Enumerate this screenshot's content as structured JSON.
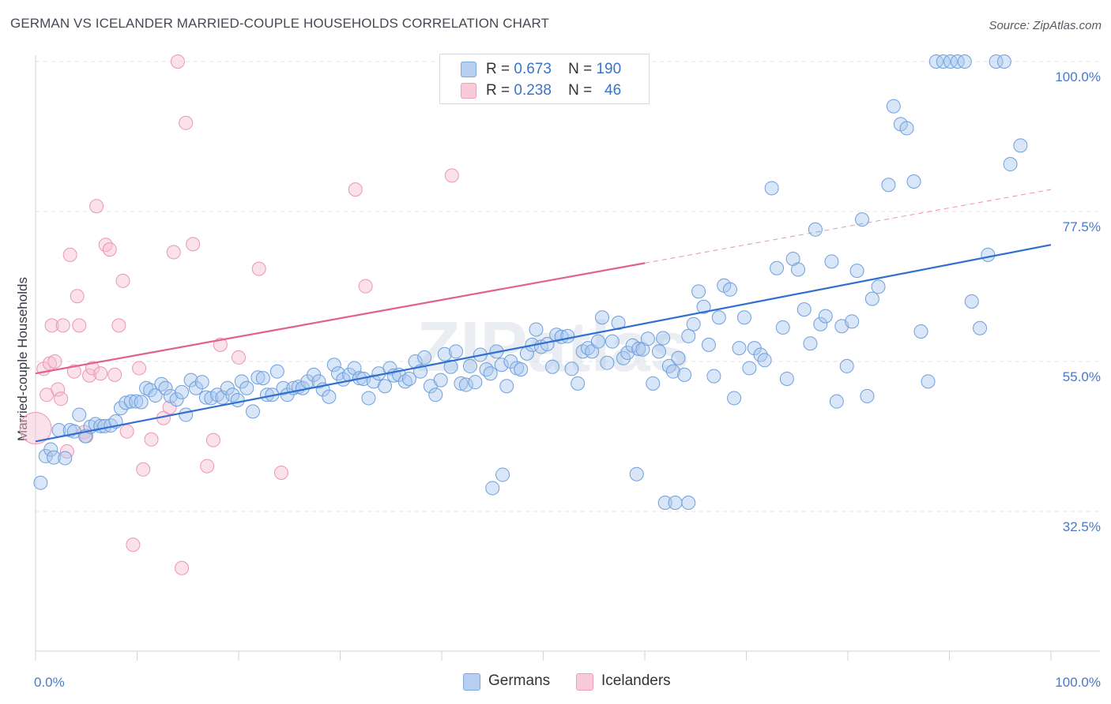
{
  "title": "GERMAN VS ICELANDER MARRIED-COUPLE HOUSEHOLDS CORRELATION CHART",
  "source": "Source: ZipAtlas.com",
  "watermark": "ZIPatlas",
  "legend": {
    "germans": {
      "r_label": "R =",
      "r_value": "0.673",
      "n_label": "N =",
      "n_value": "190"
    },
    "icelanders": {
      "r_label": "R =",
      "r_value": "0.238",
      "n_label": "N =",
      "n_value": "46"
    }
  },
  "colors": {
    "germans_fill": "#a9c8f0",
    "germans_stroke": "#6f9fdc",
    "germans_line": "#2f6fce",
    "icelanders_fill": "#f7bfd0",
    "icelanders_stroke": "#eb96b2",
    "icelanders_line": "#e0628c",
    "tick_text": "#4a78c8"
  },
  "chart_data": {
    "type": "scatter",
    "title": "GERMAN VS ICELANDER MARRIED-COUPLE HOUSEHOLDS CORRELATION CHART",
    "xlabel": "",
    "ylabel": "Married-couple Households",
    "x_tick_labels": [
      "0.0%",
      "100.0%"
    ],
    "y_tick_labels": [
      "100.0%",
      "77.5%",
      "55.0%",
      "32.5%"
    ],
    "y_ticks": [
      100.0,
      77.5,
      55.0,
      32.5
    ],
    "xlim": [
      0,
      100
    ],
    "ylim": [
      10,
      102
    ],
    "grid": true,
    "legend_position": "top-center",
    "series": [
      {
        "name": "Germans",
        "r": 0.673,
        "n": 190,
        "trend": {
          "x": [
            0,
            100
          ],
          "y": [
            43.0,
            72.5
          ],
          "dashed_from": null
        },
        "points": [
          [
            0.5,
            36.8
          ],
          [
            1.0,
            40.8
          ],
          [
            1.5,
            41.8
          ],
          [
            1.8,
            40.6
          ],
          [
            2.3,
            44.7
          ],
          [
            2.9,
            40.5
          ],
          [
            3.4,
            44.7
          ],
          [
            3.8,
            44.5
          ],
          [
            4.3,
            47.0
          ],
          [
            4.9,
            43.8
          ],
          [
            5.4,
            45.2
          ],
          [
            5.9,
            45.6
          ],
          [
            6.4,
            45.3
          ],
          [
            6.8,
            45.3
          ],
          [
            7.4,
            45.4
          ],
          [
            7.9,
            46.0
          ],
          [
            8.4,
            48.0
          ],
          [
            8.9,
            48.8
          ],
          [
            9.4,
            49.0
          ],
          [
            9.9,
            49.0
          ],
          [
            10.4,
            48.9
          ],
          [
            10.9,
            51.0
          ],
          [
            11.3,
            50.7
          ],
          [
            11.8,
            49.9
          ],
          [
            12.4,
            51.6
          ],
          [
            12.8,
            51.0
          ],
          [
            13.3,
            49.8
          ],
          [
            13.9,
            49.3
          ],
          [
            14.4,
            50.4
          ],
          [
            14.8,
            47.0
          ],
          [
            15.3,
            52.2
          ],
          [
            15.8,
            51.0
          ],
          [
            16.4,
            51.9
          ],
          [
            16.8,
            49.6
          ],
          [
            17.3,
            49.5
          ],
          [
            17.9,
            50.0
          ],
          [
            18.4,
            49.6
          ],
          [
            18.9,
            51.0
          ],
          [
            19.4,
            50.0
          ],
          [
            19.9,
            49.2
          ],
          [
            20.3,
            52.0
          ],
          [
            20.8,
            51.0
          ],
          [
            21.4,
            47.5
          ],
          [
            21.9,
            52.6
          ],
          [
            22.4,
            52.5
          ],
          [
            22.8,
            50.0
          ],
          [
            23.3,
            50.0
          ],
          [
            23.8,
            53.5
          ],
          [
            24.4,
            51.0
          ],
          [
            24.8,
            50.0
          ],
          [
            25.4,
            51.0
          ],
          [
            25.9,
            51.2
          ],
          [
            26.3,
            51.0
          ],
          [
            26.8,
            52.0
          ],
          [
            27.4,
            53.0
          ],
          [
            27.9,
            52.0
          ],
          [
            28.3,
            50.8
          ],
          [
            28.9,
            49.7
          ],
          [
            29.4,
            54.5
          ],
          [
            29.8,
            53.2
          ],
          [
            30.3,
            52.3
          ],
          [
            30.9,
            53.0
          ],
          [
            31.4,
            54.0
          ],
          [
            31.9,
            52.5
          ],
          [
            32.3,
            52.4
          ],
          [
            32.8,
            49.5
          ],
          [
            33.3,
            52.0
          ],
          [
            33.8,
            53.2
          ],
          [
            34.4,
            51.3
          ],
          [
            34.9,
            54.0
          ],
          [
            35.3,
            52.9
          ],
          [
            35.8,
            53.0
          ],
          [
            36.4,
            52.0
          ],
          [
            36.8,
            52.4
          ],
          [
            37.4,
            55.0
          ],
          [
            37.9,
            53.5
          ],
          [
            38.3,
            55.6
          ],
          [
            38.9,
            51.3
          ],
          [
            39.4,
            50.0
          ],
          [
            39.9,
            52.2
          ],
          [
            40.3,
            56.1
          ],
          [
            40.9,
            54.2
          ],
          [
            41.4,
            56.5
          ],
          [
            41.9,
            51.7
          ],
          [
            42.4,
            51.5
          ],
          [
            42.8,
            54.3
          ],
          [
            43.3,
            51.9
          ],
          [
            43.8,
            56.0
          ],
          [
            44.4,
            53.8
          ],
          [
            44.8,
            53.2
          ],
          [
            45.4,
            56.5
          ],
          [
            45.9,
            54.5
          ],
          [
            46.4,
            51.3
          ],
          [
            46.8,
            55.0
          ],
          [
            47.4,
            54.0
          ],
          [
            47.8,
            53.8
          ],
          [
            48.4,
            56.2
          ],
          [
            48.9,
            57.5
          ],
          [
            49.3,
            59.8
          ],
          [
            49.8,
            57.2
          ],
          [
            50.4,
            57.6
          ],
          [
            50.9,
            54.2
          ],
          [
            51.3,
            59.0
          ],
          [
            51.8,
            58.7
          ],
          [
            52.4,
            58.8
          ],
          [
            52.8,
            53.9
          ],
          [
            53.4,
            51.7
          ],
          [
            53.9,
            56.5
          ],
          [
            54.4,
            57.0
          ],
          [
            54.8,
            56.5
          ],
          [
            55.4,
            58.0
          ],
          [
            55.8,
            61.6
          ],
          [
            56.3,
            54.8
          ],
          [
            56.8,
            58.0
          ],
          [
            57.4,
            60.8
          ],
          [
            57.9,
            55.5
          ],
          [
            58.3,
            56.3
          ],
          [
            58.8,
            57.4
          ],
          [
            59.4,
            56.9
          ],
          [
            59.8,
            56.8
          ],
          [
            60.3,
            58.4
          ],
          [
            60.8,
            51.7
          ],
          [
            61.4,
            56.5
          ],
          [
            61.8,
            58.5
          ],
          [
            62.4,
            54.3
          ],
          [
            62.8,
            53.5
          ],
          [
            63.3,
            55.5
          ],
          [
            63.9,
            53.0
          ],
          [
            64.3,
            58.8
          ],
          [
            64.8,
            60.6
          ],
          [
            65.3,
            65.5
          ],
          [
            65.8,
            63.2
          ],
          [
            66.3,
            57.5
          ],
          [
            66.8,
            52.8
          ],
          [
            67.3,
            61.6
          ],
          [
            67.8,
            66.4
          ],
          [
            68.4,
            65.8
          ],
          [
            68.8,
            49.5
          ],
          [
            69.3,
            57.0
          ],
          [
            69.8,
            61.6
          ],
          [
            70.3,
            54.0
          ],
          [
            70.8,
            57.0
          ],
          [
            71.4,
            56.0
          ],
          [
            71.8,
            55.2
          ],
          [
            72.5,
            81.0
          ],
          [
            73.0,
            69.0
          ],
          [
            73.6,
            60.1
          ],
          [
            74.0,
            52.4
          ],
          [
            74.6,
            70.4
          ],
          [
            75.1,
            68.8
          ],
          [
            75.7,
            62.8
          ],
          [
            76.3,
            57.7
          ],
          [
            76.8,
            74.8
          ],
          [
            77.3,
            60.6
          ],
          [
            77.8,
            61.8
          ],
          [
            78.4,
            70.0
          ],
          [
            78.9,
            49.0
          ],
          [
            79.4,
            60.3
          ],
          [
            79.9,
            54.3
          ],
          [
            80.4,
            61.0
          ],
          [
            80.9,
            68.6
          ],
          [
            81.4,
            76.3
          ],
          [
            81.9,
            49.8
          ],
          [
            82.4,
            64.4
          ],
          [
            83.0,
            66.2
          ],
          [
            84.0,
            81.5
          ],
          [
            84.5,
            93.3
          ],
          [
            85.2,
            90.6
          ],
          [
            85.8,
            90.0
          ],
          [
            86.5,
            82.0
          ],
          [
            87.2,
            59.5
          ],
          [
            87.9,
            52.0
          ],
          [
            88.7,
            100.0
          ],
          [
            89.4,
            100.0
          ],
          [
            90.1,
            100.0
          ],
          [
            90.8,
            100.0
          ],
          [
            91.5,
            100.0
          ],
          [
            92.2,
            64.0
          ],
          [
            93.0,
            60.0
          ],
          [
            93.8,
            71.0
          ],
          [
            94.6,
            100.0
          ],
          [
            95.4,
            100.0
          ],
          [
            96.0,
            84.6
          ],
          [
            97.0,
            87.4
          ],
          [
            62.0,
            33.8
          ],
          [
            63.0,
            33.8
          ],
          [
            64.3,
            33.8
          ],
          [
            45.0,
            36.0
          ],
          [
            46.0,
            38.0
          ],
          [
            59.2,
            38.1
          ]
        ]
      },
      {
        "name": "Icelanders",
        "r": 0.238,
        "n": 46,
        "trend": {
          "x": [
            0,
            100
          ],
          "y": [
            53.2,
            80.8
          ],
          "dashed_from": 60
        },
        "points": [
          [
            0.0,
            45.0
          ],
          [
            0.8,
            53.9
          ],
          [
            1.1,
            50.0
          ],
          [
            1.4,
            54.7
          ],
          [
            1.6,
            60.4
          ],
          [
            1.9,
            55.0
          ],
          [
            2.2,
            50.8
          ],
          [
            2.5,
            49.4
          ],
          [
            2.7,
            60.4
          ],
          [
            3.1,
            41.5
          ],
          [
            3.4,
            71.0
          ],
          [
            3.8,
            53.5
          ],
          [
            4.1,
            64.8
          ],
          [
            4.3,
            60.4
          ],
          [
            4.8,
            44.4
          ],
          [
            5.0,
            43.8
          ],
          [
            5.3,
            52.9
          ],
          [
            5.6,
            54.0
          ],
          [
            6.0,
            78.3
          ],
          [
            6.4,
            53.2
          ],
          [
            6.9,
            72.5
          ],
          [
            7.3,
            71.8
          ],
          [
            7.8,
            53.0
          ],
          [
            8.2,
            60.4
          ],
          [
            8.6,
            67.1
          ],
          [
            9.0,
            44.5
          ],
          [
            9.6,
            27.5
          ],
          [
            10.2,
            54.0
          ],
          [
            10.6,
            38.8
          ],
          [
            11.4,
            43.3
          ],
          [
            12.6,
            46.5
          ],
          [
            13.2,
            48.1
          ],
          [
            13.6,
            71.4
          ],
          [
            14.0,
            100.0
          ],
          [
            14.4,
            24.0
          ],
          [
            14.8,
            90.8
          ],
          [
            15.5,
            72.6
          ],
          [
            16.9,
            39.3
          ],
          [
            17.5,
            43.2
          ],
          [
            18.2,
            57.5
          ],
          [
            20.0,
            55.6
          ],
          [
            22.0,
            68.9
          ],
          [
            24.2,
            38.3
          ],
          [
            31.5,
            80.8
          ],
          [
            32.5,
            66.3
          ],
          [
            41.0,
            82.9
          ]
        ]
      }
    ]
  },
  "bottom_legend": {
    "germans": "Germans",
    "icelanders": "Icelanders"
  }
}
